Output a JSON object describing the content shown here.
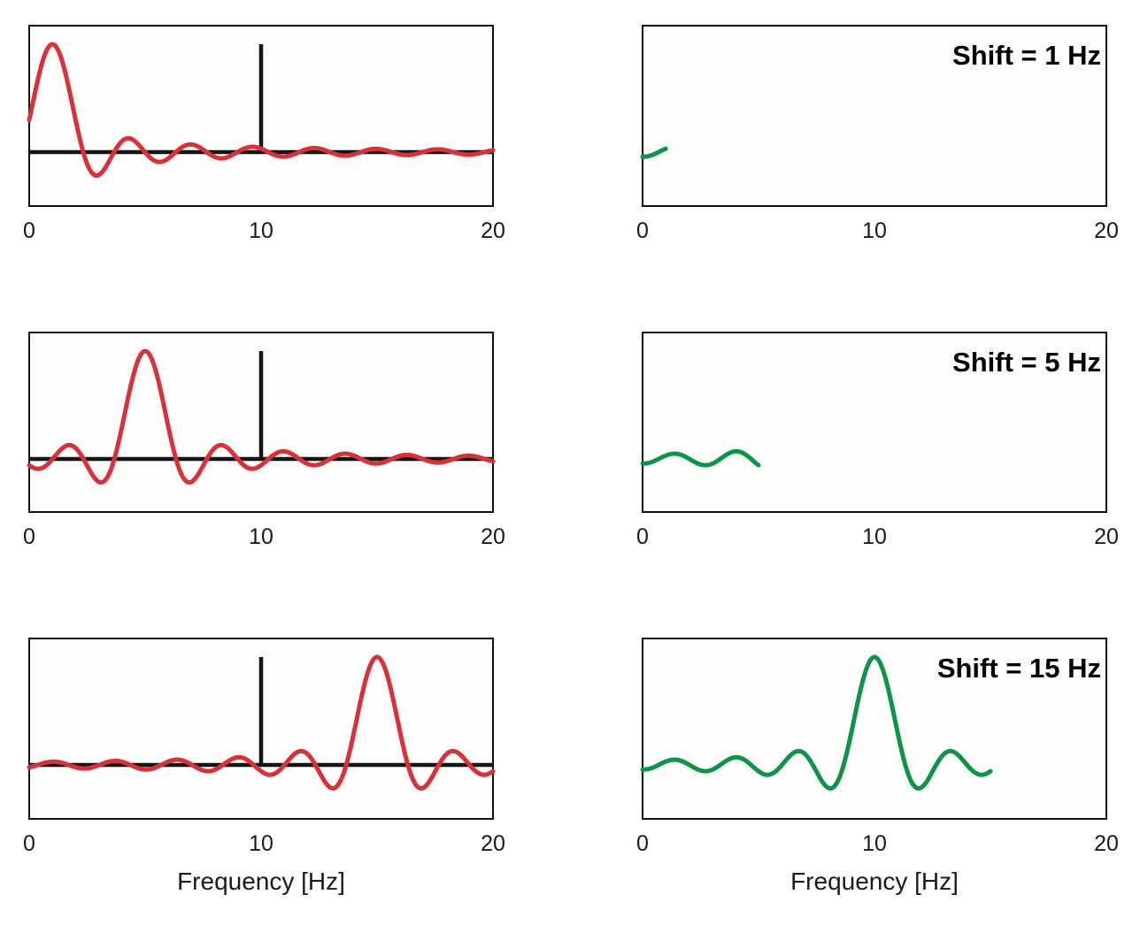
{
  "colors": {
    "spectrum_line": "#d9313a",
    "stimulus_line": "#151515",
    "correlation_line": "#0d9448",
    "frame": "#111111",
    "background": "#fdfdfb"
  },
  "xlabel": "Frequency [Hz]",
  "chart_data": [
    {
      "type": "line",
      "column": "left",
      "row": 1,
      "xlim": [
        0,
        20
      ],
      "ylim": [
        -0.5,
        1.0
      ],
      "xticks": [
        0,
        10,
        20
      ],
      "xtick_labels": [
        "0",
        "10",
        "20"
      ],
      "xlabel": "",
      "series": [
        {
          "role": "spike",
          "shape": "spike",
          "at": 10,
          "height": 1.0
        },
        {
          "role": "spectrum",
          "shape": "sinc",
          "center": 1,
          "amplitude": 1.0,
          "halfwidth": 1.33,
          "x_range": [
            0,
            20
          ]
        }
      ]
    },
    {
      "type": "line",
      "column": "right",
      "row": 1,
      "annotation": "Shift = 1 Hz",
      "xlim": [
        0,
        20
      ],
      "ylim": [
        -0.5,
        1.0
      ],
      "xticks": [
        0,
        10,
        20
      ],
      "xtick_labels": [
        "0",
        "10",
        "20"
      ],
      "xlabel": "",
      "series": [
        {
          "role": "correlation",
          "shape": "sinc",
          "center": 10,
          "amplitude": 1.0,
          "halfwidth": 1.33,
          "x_range": [
            0,
            1
          ]
        }
      ]
    },
    {
      "type": "line",
      "column": "left",
      "row": 2,
      "xlim": [
        0,
        20
      ],
      "ylim": [
        -0.5,
        1.0
      ],
      "xticks": [
        0,
        10,
        20
      ],
      "xtick_labels": [
        "0",
        "10",
        "20"
      ],
      "xlabel": "",
      "series": [
        {
          "role": "spike",
          "shape": "spike",
          "at": 10,
          "height": 1.0
        },
        {
          "role": "spectrum",
          "shape": "sinc",
          "center": 5,
          "amplitude": 1.0,
          "halfwidth": 1.33,
          "x_range": [
            0,
            20
          ]
        }
      ]
    },
    {
      "type": "line",
      "column": "right",
      "row": 2,
      "annotation": "Shift = 5 Hz",
      "xlim": [
        0,
        20
      ],
      "ylim": [
        -0.5,
        1.0
      ],
      "xticks": [
        0,
        10,
        20
      ],
      "xtick_labels": [
        "0",
        "10",
        "20"
      ],
      "xlabel": "",
      "series": [
        {
          "role": "correlation",
          "shape": "sinc",
          "center": 10,
          "amplitude": 1.0,
          "halfwidth": 1.33,
          "x_range": [
            0,
            5
          ]
        }
      ]
    },
    {
      "type": "line",
      "column": "left",
      "row": 3,
      "xlim": [
        0,
        20
      ],
      "ylim": [
        -0.5,
        1.0
      ],
      "xticks": [
        0,
        10,
        20
      ],
      "xtick_labels": [
        "0",
        "10",
        "20"
      ],
      "xlabel": "Frequency [Hz]",
      "series": [
        {
          "role": "spike",
          "shape": "spike",
          "at": 10,
          "height": 1.0
        },
        {
          "role": "spectrum",
          "shape": "sinc",
          "center": 15,
          "amplitude": 1.0,
          "halfwidth": 1.33,
          "x_range": [
            0,
            20
          ]
        }
      ]
    },
    {
      "type": "line",
      "column": "right",
      "row": 3,
      "annotation": "Shift = 15 Hz",
      "xlim": [
        0,
        20
      ],
      "ylim": [
        -0.5,
        1.0
      ],
      "xticks": [
        0,
        10,
        20
      ],
      "xtick_labels": [
        "0",
        "10",
        "20"
      ],
      "xlabel": "Frequency [Hz]",
      "series": [
        {
          "role": "correlation",
          "shape": "sinc",
          "center": 10,
          "amplitude": 1.0,
          "halfwidth": 1.33,
          "x_range": [
            0,
            15
          ]
        }
      ]
    }
  ]
}
